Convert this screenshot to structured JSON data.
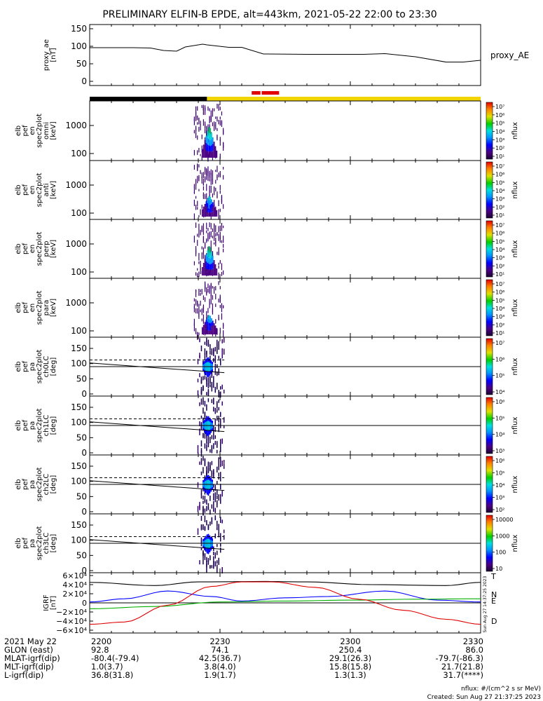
{
  "title": "PRELIMINARY ELFIN-B EPDE, alt=443km, 2021-05-22 22:00 to 23:30",
  "colors": {
    "night_bar": "#000000",
    "day_bar": "#f2d500",
    "science_bar": "#e00000",
    "grf_x": "#0000ff",
    "grf_y": "#00b000",
    "grf_z": "#e00000",
    "grf_t": "#000000"
  },
  "panels": [
    {
      "id": "ae",
      "ylabel": [
        "proxy_ae",
        "[nT]"
      ],
      "right_label": "proxy_AE",
      "yticks": [
        "150",
        "100",
        "50",
        "0"
      ]
    },
    {
      "id": "omni",
      "ylabel": [
        "elb",
        "pef",
        "en",
        "spec2plot",
        "omni",
        "[keV]"
      ],
      "yticks": [
        "1000",
        "100"
      ],
      "cbar_label": "nflux"
    },
    {
      "id": "anti",
      "ylabel": [
        "elb",
        "pef",
        "en",
        "spec2plot",
        "anti",
        "[keV]"
      ],
      "yticks": [
        "1000",
        "100"
      ],
      "cbar_label": "nflux"
    },
    {
      "id": "perp",
      "ylabel": [
        "elb",
        "pef",
        "en",
        "spec2plot",
        "perp",
        "[keV]"
      ],
      "yticks": [
        "1000",
        "100"
      ],
      "cbar_label": "nflux"
    },
    {
      "id": "para",
      "ylabel": [
        "elb",
        "pef",
        "en",
        "spec2plot",
        "para",
        "[keV]"
      ],
      "yticks": [
        "1000",
        "100"
      ],
      "cbar_label": "nflux"
    },
    {
      "id": "ch0",
      "ylabel": [
        "elb",
        "pef",
        "pa",
        "spec2plot",
        "ch0LC",
        "[deg]"
      ],
      "yticks": [
        "150",
        "100",
        "50",
        "0"
      ],
      "cbar_label": "nflux"
    },
    {
      "id": "ch1",
      "ylabel": [
        "elb",
        "pef",
        "pa",
        "spec2plot",
        "ch1LC",
        "[deg]"
      ],
      "yticks": [
        "150",
        "100",
        "50",
        "0"
      ],
      "cbar_label": "nflux"
    },
    {
      "id": "ch2",
      "ylabel": [
        "elb",
        "pef",
        "pa",
        "spec2plot",
        "ch2LC",
        "[deg]"
      ],
      "yticks": [
        "150",
        "100",
        "50",
        "0"
      ],
      "cbar_label": "nflux"
    },
    {
      "id": "ch3",
      "ylabel": [
        "elb",
        "pef",
        "pa",
        "spec2plot",
        "ch3LC",
        "[deg]"
      ],
      "yticks": [
        "150",
        "100",
        "50",
        "0"
      ],
      "cbar_label": "nflux"
    },
    {
      "id": "grf",
      "ylabel": [
        "IGRF",
        "[nT]"
      ],
      "yticks": [
        "6×10⁴",
        "4×10⁴",
        "2×10⁴",
        "0",
        "−2×10⁴",
        "−4×10⁴",
        "−6×10⁴"
      ]
    }
  ],
  "colorbar_ticks": {
    "omni": [
      "10⁷",
      "10⁶",
      "10⁵",
      "10⁴",
      "10³",
      "10²",
      "10¹"
    ],
    "anti": [
      "10⁷",
      "10⁶",
      "10⁵",
      "10⁴",
      "10³",
      "10²",
      "10¹"
    ],
    "perp": [
      "10⁷",
      "10⁶",
      "10⁵",
      "10⁴",
      "10³",
      "10²",
      "10¹"
    ],
    "para": [
      "10⁷",
      "10⁶",
      "10⁵",
      "10⁴",
      "10³",
      "10²",
      "10¹"
    ],
    "ch0": [
      "10⁷",
      "10⁶",
      "10⁵",
      "10⁴"
    ],
    "ch1": [
      "10⁶",
      "10⁵",
      "10⁴",
      "10³"
    ],
    "ch2": [
      "10⁶",
      "10⁵",
      "10⁴",
      "10³",
      "10²"
    ],
    "ch3": [
      "10000",
      "1000",
      "100",
      "10"
    ]
  },
  "grf_legend": [
    "T",
    "N",
    "E",
    "D"
  ],
  "grf_side_text": "Sun Aug 27 14:37:25 2023",
  "footer": {
    "rows": [
      {
        "label": "2021 May 22",
        "values": [
          "2200",
          "2230",
          "2300",
          "2330"
        ]
      },
      {
        "label": "GLON (east)",
        "values": [
          "92.8",
          "74.1",
          "250.4",
          "86.0"
        ]
      },
      {
        "label": "MLAT-igrf(dip)",
        "values": [
          "-80.4(-79.4)",
          "42.5(36.7)",
          "29.1(26.3)",
          "-79.7(-86.3)"
        ]
      },
      {
        "label": "MLT-igrf(dip)",
        "values": [
          "1.0(3.7)",
          "3.8(4.0)",
          "15.8(15.8)",
          "21.7(21.8)"
        ]
      },
      {
        "label": "L-igrf(dip)",
        "values": [
          "36.8(31.8)",
          "1.9(1.7)",
          "1.3(1.3)",
          "31.7(****)"
        ]
      }
    ],
    "units_note": "nflux: #/(cm^2 s sr MeV)",
    "created": "Created: Sun Aug 27 21:37:25 2023"
  },
  "chart_data": {
    "type": "line",
    "time_range": [
      "2021-05-22 22:00",
      "2021-05-22 23:30"
    ],
    "x_ticks": [
      "2200",
      "2230",
      "2300",
      "2330"
    ],
    "proxy_ae": {
      "ylim": [
        0,
        150
      ],
      "t_minutes": [
        0,
        10,
        14,
        17,
        20,
        22,
        26,
        27,
        32,
        35,
        40,
        50,
        55,
        63,
        68,
        75,
        82,
        86,
        90
      ],
      "values": [
        96,
        96,
        95,
        88,
        86,
        98,
        106,
        104,
        97,
        97,
        78,
        77,
        77,
        77,
        79,
        70,
        55,
        55,
        60
      ]
    },
    "active_interval_minutes": [
      24,
      31
    ],
    "orbit_bars": [
      {
        "kind": "night",
        "start": 0,
        "end": 27
      },
      {
        "kind": "day",
        "start": 27,
        "end": 90
      },
      {
        "kind": "science",
        "start": 37.3,
        "end": 39.3
      },
      {
        "kind": "science",
        "start": 39.6,
        "end": 43.6
      }
    ],
    "loss_cone": {
      "dashed_deg": 112,
      "solid_start_deg": 102,
      "solid_end_deg": 70,
      "horizontal_deg": 90
    },
    "grf": {
      "ylim": [
        -60000,
        60000
      ],
      "series": [
        {
          "name": "T",
          "t_minutes": [
            0,
            15,
            25,
            40,
            50,
            65,
            82,
            90
          ],
          "values": [
            45000,
            38000,
            46000,
            47000,
            46000,
            40000,
            38000,
            45000
          ]
        },
        {
          "name": "N",
          "t_minutes": [
            0,
            8,
            18,
            28,
            35,
            45,
            55,
            68,
            80,
            90
          ],
          "values": [
            2000,
            9000,
            26000,
            14000,
            4000,
            11000,
            14000,
            26000,
            6000,
            2000
          ]
        },
        {
          "name": "E",
          "t_minutes": [
            0,
            15,
            30,
            45,
            60,
            75,
            90
          ],
          "values": [
            -13000,
            -8000,
            2000,
            4000,
            6000,
            8000,
            9000
          ]
        },
        {
          "name": "D",
          "t_minutes": [
            0,
            8,
            18,
            28,
            35,
            42,
            52,
            62,
            72,
            82,
            90
          ],
          "values": [
            -47000,
            -42000,
            -5000,
            36000,
            46000,
            46000,
            34000,
            8000,
            -16000,
            -36000,
            -47000
          ]
        }
      ]
    }
  }
}
